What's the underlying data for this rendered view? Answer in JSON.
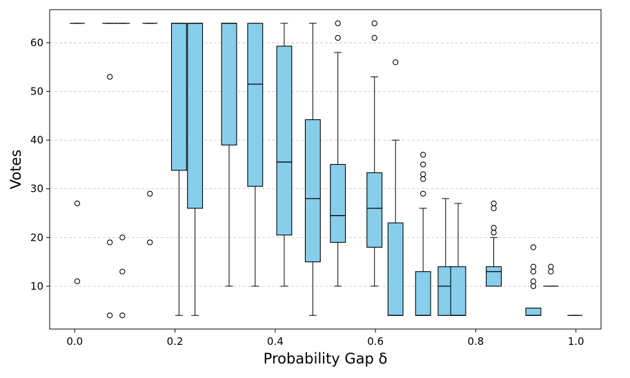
{
  "chart_data": {
    "type": "boxplot",
    "title": "",
    "xlabel": "Probability Gap δ",
    "ylabel": "Votes",
    "xlim": [
      -0.05,
      1.05
    ],
    "ylim": [
      1.2,
      66.8
    ],
    "xticks": [
      0.0,
      0.2,
      0.4,
      0.6,
      0.8,
      1.0
    ],
    "xtick_labels": [
      "0.0",
      "0.2",
      "0.4",
      "0.6",
      "0.8",
      "1.0"
    ],
    "yticks": [
      10,
      20,
      30,
      40,
      50,
      60
    ],
    "ytick_labels": [
      "10",
      "20",
      "30",
      "40",
      "50",
      "60"
    ],
    "grid": "y-dashed",
    "box_color": "#87ceeb",
    "edge_color": "#000000",
    "grid_color": "#c8c8c8",
    "boxes": [
      {
        "x": 0.005,
        "width": 0.03,
        "q1": 64,
        "median": 64,
        "q3": 64,
        "whisker_low": 64,
        "whisker_high": 64,
        "outliers": [
          27,
          11
        ]
      },
      {
        "x": 0.07,
        "width": 0.03,
        "q1": 64,
        "median": 64,
        "q3": 64,
        "whisker_low": 64,
        "whisker_high": 64,
        "outliers": [
          53,
          19,
          4
        ]
      },
      {
        "x": 0.095,
        "width": 0.03,
        "q1": 64,
        "median": 64,
        "q3": 64,
        "whisker_low": 64,
        "whisker_high": 64,
        "outliers": [
          20,
          13,
          4
        ]
      },
      {
        "x": 0.15,
        "width": 0.03,
        "q1": 64,
        "median": 64,
        "q3": 64,
        "whisker_low": 64,
        "whisker_high": 64,
        "outliers": [
          29,
          19
        ]
      },
      {
        "x": 0.208,
        "width": 0.03,
        "q1": 33.8,
        "median": 64,
        "q3": 64,
        "whisker_low": 4,
        "whisker_high": 64,
        "outliers": []
      },
      {
        "x": 0.24,
        "width": 0.03,
        "q1": 26,
        "median": 64,
        "q3": 64,
        "whisker_low": 4,
        "whisker_high": 64,
        "outliers": []
      },
      {
        "x": 0.308,
        "width": 0.03,
        "q1": 39,
        "median": 64,
        "q3": 64,
        "whisker_low": 10,
        "whisker_high": 64,
        "outliers": []
      },
      {
        "x": 0.36,
        "width": 0.03,
        "q1": 30.5,
        "median": 51.5,
        "q3": 64,
        "whisker_low": 10,
        "whisker_high": 64,
        "outliers": []
      },
      {
        "x": 0.418,
        "width": 0.03,
        "q1": 20.5,
        "median": 35.5,
        "q3": 59.3,
        "whisker_low": 10,
        "whisker_high": 64,
        "outliers": []
      },
      {
        "x": 0.475,
        "width": 0.03,
        "q1": 15,
        "median": 28,
        "q3": 44.2,
        "whisker_low": 4,
        "whisker_high": 64,
        "outliers": []
      },
      {
        "x": 0.525,
        "width": 0.03,
        "q1": 19,
        "median": 24.5,
        "q3": 35,
        "whisker_low": 10,
        "whisker_high": 58,
        "outliers": [
          64,
          61
        ]
      },
      {
        "x": 0.598,
        "width": 0.03,
        "q1": 18,
        "median": 26,
        "q3": 33.3,
        "whisker_low": 10,
        "whisker_high": 53,
        "outliers": [
          64,
          61
        ]
      },
      {
        "x": 0.64,
        "width": 0.03,
        "q1": 4,
        "median": 4,
        "q3": 23,
        "whisker_low": 4,
        "whisker_high": 40,
        "outliers": [
          56
        ]
      },
      {
        "x": 0.695,
        "width": 0.03,
        "q1": 4,
        "median": 4,
        "q3": 13,
        "whisker_low": 4,
        "whisker_high": 26,
        "outliers": [
          37,
          35,
          33,
          32,
          29
        ]
      },
      {
        "x": 0.74,
        "width": 0.03,
        "q1": 4,
        "median": 10,
        "q3": 14,
        "whisker_low": 4,
        "whisker_high": 28,
        "outliers": []
      },
      {
        "x": 0.765,
        "width": 0.03,
        "q1": 4,
        "median": 4,
        "q3": 14,
        "whisker_low": 4,
        "whisker_high": 27,
        "outliers": []
      },
      {
        "x": 0.836,
        "width": 0.03,
        "q1": 10,
        "median": 13,
        "q3": 14,
        "whisker_low": 10,
        "whisker_high": 20,
        "outliers": [
          27,
          26,
          22,
          21
        ]
      },
      {
        "x": 0.915,
        "width": 0.03,
        "q1": 4,
        "median": 4,
        "q3": 5.5,
        "whisker_low": 4,
        "whisker_high": 5.5,
        "outliers": [
          18,
          14,
          13,
          11,
          10
        ]
      },
      {
        "x": 0.95,
        "width": 0.03,
        "q1": 10,
        "median": 10,
        "q3": 10,
        "whisker_low": 10,
        "whisker_high": 10,
        "outliers": [
          14,
          13
        ]
      },
      {
        "x": 0.998,
        "width": 0.03,
        "q1": 4,
        "median": 4,
        "q3": 4,
        "whisker_low": 4,
        "whisker_high": 4,
        "outliers": []
      }
    ]
  }
}
